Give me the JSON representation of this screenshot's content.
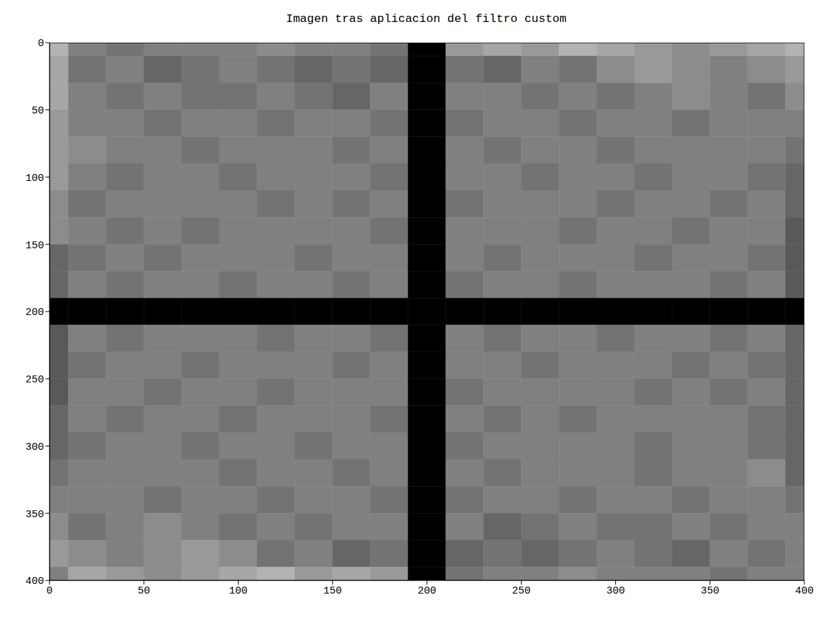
{
  "chart_data": {
    "type": "heatmap",
    "title": "Imagen tras aplicacion del filtro custom",
    "xlim": [
      0,
      400
    ],
    "ylim": [
      400,
      0
    ],
    "xticks": [
      0,
      50,
      100,
      150,
      200,
      250,
      300,
      350,
      400
    ],
    "yticks": [
      0,
      50,
      100,
      150,
      200,
      250,
      300,
      350,
      400
    ],
    "grid": false,
    "color": "#000000",
    "x_edges": [
      0,
      10,
      30,
      50,
      70,
      90,
      110,
      130,
      150,
      170,
      190,
      210,
      230,
      250,
      270,
      290,
      310,
      330,
      350,
      370,
      390,
      400
    ],
    "y_edges": [
      0,
      10,
      30,
      50,
      70,
      90,
      110,
      130,
      150,
      170,
      190,
      210,
      230,
      250,
      270,
      290,
      310,
      330,
      350,
      370,
      390,
      400
    ],
    "cells": [
      [
        0.3,
        0.5,
        0.55,
        0.5,
        0.5,
        0.5,
        0.45,
        0.5,
        0.5,
        0.55,
        1,
        0.4,
        0.35,
        0.4,
        0.3,
        0.35,
        0.4,
        0.45,
        0.4,
        0.35,
        0.3
      ],
      [
        0.35,
        0.55,
        0.5,
        0.6,
        0.55,
        0.5,
        0.55,
        0.6,
        0.55,
        0.6,
        1,
        0.55,
        0.6,
        0.5,
        0.55,
        0.45,
        0.4,
        0.45,
        0.5,
        0.45,
        0.4
      ],
      [
        0.35,
        0.5,
        0.55,
        0.5,
        0.55,
        0.55,
        0.5,
        0.55,
        0.6,
        0.5,
        1,
        0.5,
        0.5,
        0.55,
        0.5,
        0.55,
        0.5,
        0.45,
        0.5,
        0.55,
        0.45
      ],
      [
        0.4,
        0.5,
        0.5,
        0.55,
        0.5,
        0.5,
        0.55,
        0.5,
        0.5,
        0.55,
        1,
        0.55,
        0.5,
        0.5,
        0.55,
        0.5,
        0.5,
        0.55,
        0.5,
        0.5,
        0.5
      ],
      [
        0.4,
        0.45,
        0.5,
        0.5,
        0.55,
        0.5,
        0.5,
        0.5,
        0.55,
        0.5,
        1,
        0.5,
        0.55,
        0.5,
        0.5,
        0.55,
        0.5,
        0.5,
        0.5,
        0.5,
        0.55
      ],
      [
        0.4,
        0.5,
        0.55,
        0.5,
        0.5,
        0.55,
        0.5,
        0.5,
        0.5,
        0.55,
        1,
        0.5,
        0.5,
        0.55,
        0.5,
        0.5,
        0.55,
        0.5,
        0.5,
        0.55,
        0.6
      ],
      [
        0.45,
        0.55,
        0.5,
        0.5,
        0.5,
        0.5,
        0.55,
        0.5,
        0.55,
        0.5,
        1,
        0.55,
        0.5,
        0.5,
        0.5,
        0.55,
        0.5,
        0.5,
        0.55,
        0.5,
        0.6
      ],
      [
        0.45,
        0.5,
        0.55,
        0.5,
        0.55,
        0.5,
        0.5,
        0.5,
        0.5,
        0.55,
        1,
        0.5,
        0.5,
        0.5,
        0.55,
        0.5,
        0.5,
        0.55,
        0.5,
        0.5,
        0.65
      ],
      [
        0.6,
        0.55,
        0.5,
        0.55,
        0.5,
        0.5,
        0.5,
        0.55,
        0.5,
        0.5,
        1,
        0.5,
        0.55,
        0.5,
        0.5,
        0.5,
        0.55,
        0.5,
        0.5,
        0.55,
        0.65
      ],
      [
        0.6,
        0.5,
        0.55,
        0.5,
        0.5,
        0.55,
        0.5,
        0.5,
        0.55,
        0.5,
        1,
        0.55,
        0.5,
        0.5,
        0.55,
        0.5,
        0.5,
        0.5,
        0.55,
        0.5,
        0.65
      ],
      [
        1,
        1,
        1,
        1,
        1,
        1,
        1,
        1,
        1,
        1,
        1,
        1,
        1,
        1,
        1,
        1,
        1,
        1,
        1,
        1,
        1
      ],
      [
        0.65,
        0.5,
        0.55,
        0.5,
        0.5,
        0.5,
        0.55,
        0.5,
        0.5,
        0.55,
        1,
        0.5,
        0.55,
        0.5,
        0.5,
        0.55,
        0.5,
        0.5,
        0.55,
        0.5,
        0.6
      ],
      [
        0.65,
        0.55,
        0.5,
        0.5,
        0.55,
        0.5,
        0.5,
        0.5,
        0.55,
        0.5,
        1,
        0.5,
        0.5,
        0.55,
        0.5,
        0.5,
        0.5,
        0.55,
        0.5,
        0.55,
        0.6
      ],
      [
        0.65,
        0.5,
        0.5,
        0.55,
        0.5,
        0.5,
        0.55,
        0.5,
        0.5,
        0.5,
        1,
        0.55,
        0.5,
        0.5,
        0.5,
        0.5,
        0.55,
        0.5,
        0.55,
        0.5,
        0.6
      ],
      [
        0.6,
        0.5,
        0.55,
        0.5,
        0.5,
        0.55,
        0.5,
        0.5,
        0.5,
        0.55,
        1,
        0.5,
        0.55,
        0.5,
        0.55,
        0.5,
        0.5,
        0.5,
        0.5,
        0.55,
        0.6
      ],
      [
        0.6,
        0.55,
        0.5,
        0.5,
        0.55,
        0.5,
        0.5,
        0.55,
        0.5,
        0.5,
        1,
        0.55,
        0.5,
        0.5,
        0.5,
        0.5,
        0.55,
        0.5,
        0.5,
        0.55,
        0.6
      ],
      [
        0.55,
        0.5,
        0.5,
        0.5,
        0.5,
        0.55,
        0.5,
        0.5,
        0.55,
        0.5,
        1,
        0.5,
        0.55,
        0.5,
        0.5,
        0.5,
        0.55,
        0.5,
        0.5,
        0.45,
        0.6
      ],
      [
        0.5,
        0.5,
        0.5,
        0.55,
        0.5,
        0.5,
        0.55,
        0.5,
        0.5,
        0.55,
        1,
        0.55,
        0.5,
        0.5,
        0.55,
        0.5,
        0.5,
        0.55,
        0.5,
        0.5,
        0.55
      ],
      [
        0.45,
        0.55,
        0.5,
        0.45,
        0.5,
        0.55,
        0.5,
        0.55,
        0.5,
        0.5,
        1,
        0.5,
        0.6,
        0.55,
        0.5,
        0.55,
        0.55,
        0.5,
        0.55,
        0.5,
        0.5
      ],
      [
        0.4,
        0.45,
        0.5,
        0.45,
        0.4,
        0.45,
        0.55,
        0.5,
        0.6,
        0.55,
        1,
        0.6,
        0.55,
        0.6,
        0.55,
        0.5,
        0.55,
        0.6,
        0.5,
        0.55,
        0.5
      ],
      [
        0.5,
        0.35,
        0.4,
        0.45,
        0.4,
        0.35,
        0.3,
        0.4,
        0.35,
        0.4,
        1,
        0.55,
        0.5,
        0.5,
        0.45,
        0.5,
        0.5,
        0.5,
        0.55,
        0.5,
        0.5
      ]
    ]
  }
}
